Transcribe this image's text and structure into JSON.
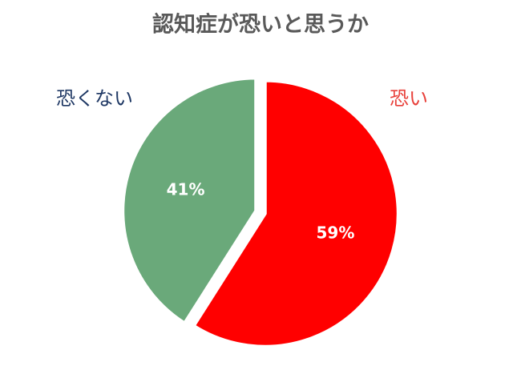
{
  "chart_data": {
    "type": "pie",
    "title": "認知症が恐いと思うか",
    "categories": [
      "恐い",
      "恐くない"
    ],
    "values": [
      59,
      41
    ],
    "value_labels": [
      "59%",
      "41%"
    ],
    "colors": [
      "#ff0000",
      "#6aa97a"
    ],
    "label_colors": [
      "#e8403a",
      "#1f3864"
    ]
  }
}
